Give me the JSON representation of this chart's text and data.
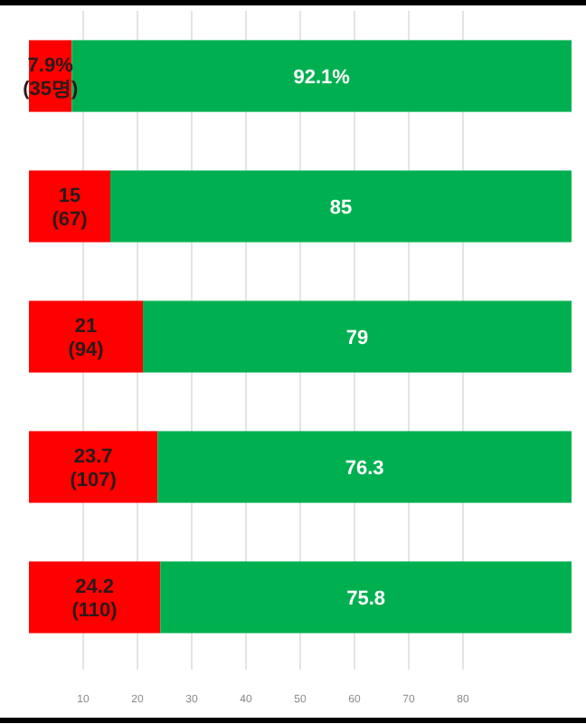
{
  "chart_data": {
    "type": "bar",
    "orientation": "horizontal",
    "stacked": true,
    "categories": [
      null,
      null,
      null,
      null,
      null
    ],
    "series": [
      {
        "color": "#ff0000",
        "values": [
          7.9,
          15,
          21,
          23.7,
          24.2
        ],
        "value_labels": [
          "7.9%\n(35명)",
          "15\n(67)",
          "21\n(94)",
          "23.7\n(107)",
          "24.2\n(110)"
        ]
      },
      {
        "color": "#00b050",
        "values": [
          92.1,
          85,
          79,
          76.3,
          75.8
        ],
        "value_labels": [
          "92.1%",
          "85",
          "79",
          "76.3",
          "75.8"
        ]
      }
    ],
    "xlim": [
      0,
      100
    ],
    "xticks": [
      10,
      20,
      30,
      40,
      50,
      60,
      70,
      80
    ],
    "grid": "x"
  }
}
